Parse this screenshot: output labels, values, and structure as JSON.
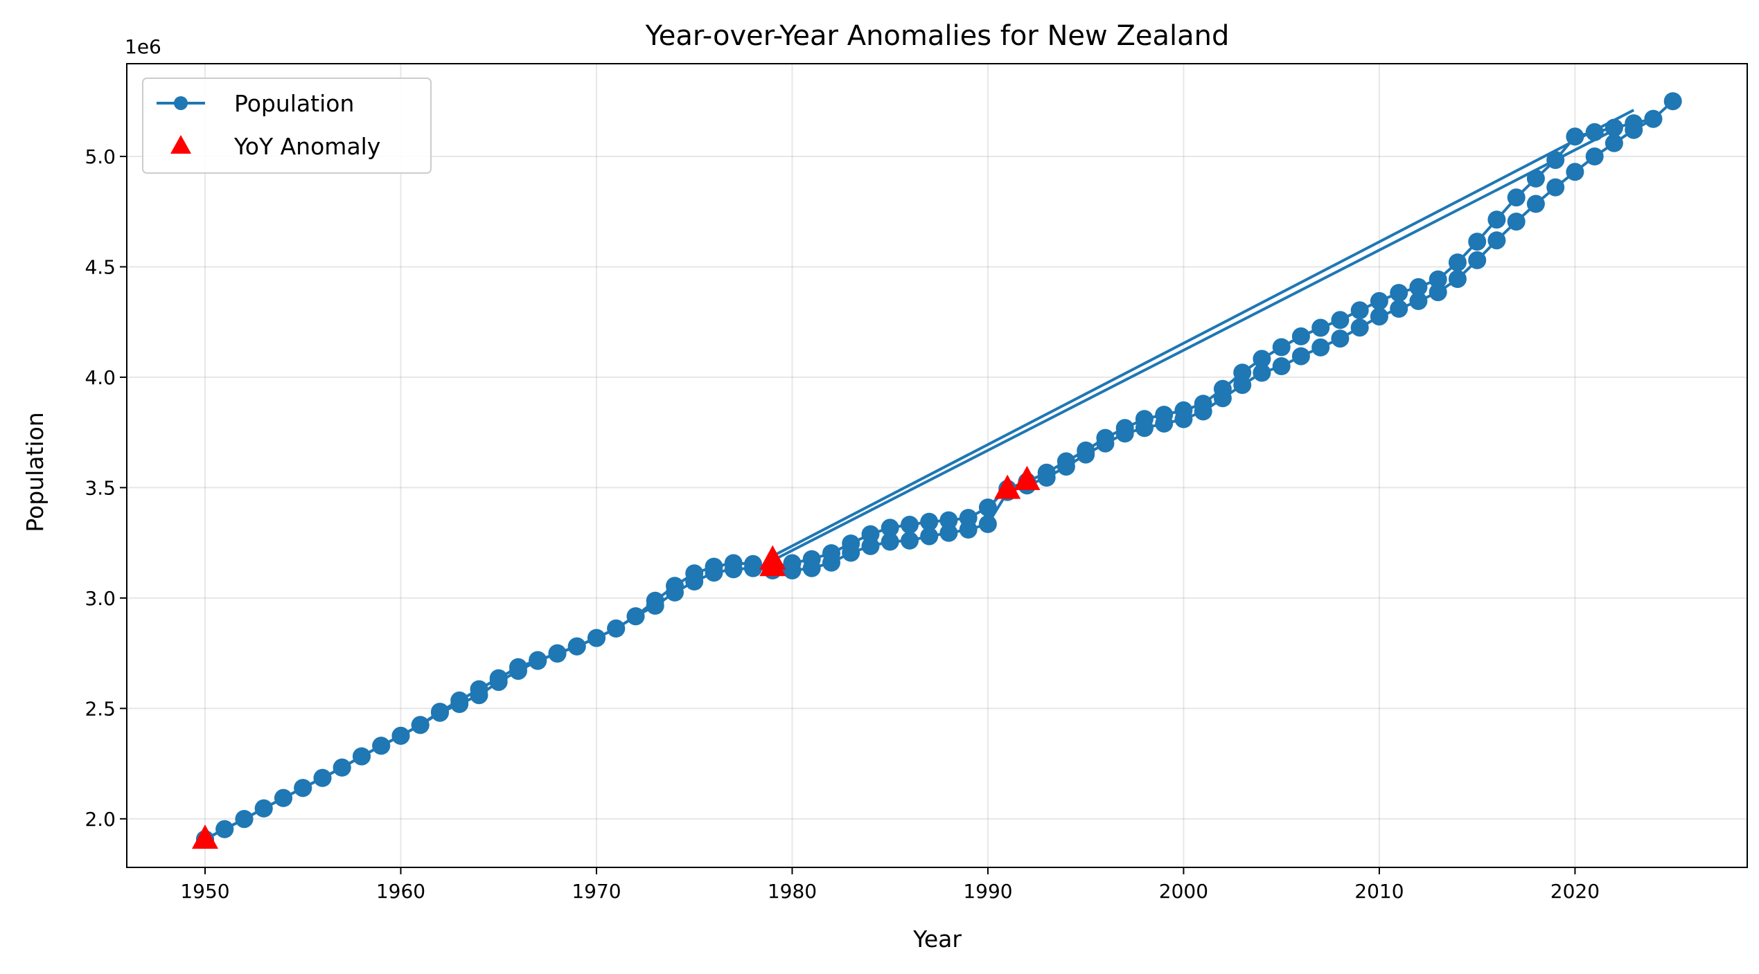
{
  "chart_data": {
    "type": "line",
    "title": "Year-over-Year Anomalies for New Zealand",
    "xlabel": "Year",
    "ylabel": "Population",
    "y_offset_label": "1e6",
    "xlim": [
      1946,
      2028.8
    ],
    "ylim": [
      1.78,
      5.42
    ],
    "x_ticks": [
      1950,
      1960,
      1970,
      1980,
      1990,
      2000,
      2010,
      2020
    ],
    "x_tick_labels": [
      "1950",
      "1960",
      "1970",
      "1980",
      "1990",
      "2000",
      "2010",
      "2020"
    ],
    "y_ticks": [
      2.0,
      2.5,
      3.0,
      3.5,
      4.0,
      4.5,
      5.0
    ],
    "y_tick_labels": [
      "2.0",
      "2.5",
      "3.0",
      "3.5",
      "4.0",
      "4.5",
      "5.0"
    ],
    "grid": true,
    "legend_position": "top-left",
    "colors": {
      "population": "#1f77b4",
      "anomaly": "#ff0000"
    },
    "series": [
      {
        "name": "Population",
        "segments": [
          {
            "x": [
              1950,
              1951,
              1952,
              1953,
              1954,
              1955,
              1956,
              1957,
              1958,
              1959,
              1960,
              1961,
              1962,
              1963,
              1964,
              1965,
              1966,
              1967,
              1968,
              1969,
              1970,
              1971,
              1972,
              1973,
              1974,
              1975,
              1976,
              1977,
              1978,
              1979,
              1980,
              1981,
              1982,
              1983,
              1984,
              1985,
              1986,
              1987,
              1988,
              1989,
              1990,
              1991,
              1992,
              1993,
              1994,
              1995,
              1996,
              1997,
              1998,
              1999,
              2000,
              2001,
              2002,
              2003,
              2004,
              2005,
              2006,
              2007,
              2008,
              2009,
              2010,
              2011,
              2012,
              2013,
              2014,
              2015,
              2016,
              2017,
              2018,
              2019,
              2020,
              2021,
              2022,
              2023,
              2024,
              2025
            ],
            "y": [
              1.908,
              1.953,
              1.999,
              2.047,
              2.094,
              2.14,
              2.185,
              2.232,
              2.283,
              2.331,
              2.376,
              2.425,
              2.485,
              2.536,
              2.587,
              2.637,
              2.687,
              2.719,
              2.748,
              2.781,
              2.819,
              2.862,
              2.917,
              2.988,
              3.055,
              3.112,
              3.142,
              3.158,
              3.154,
              3.14,
              3.158,
              3.176,
              3.203,
              3.247,
              3.289,
              3.318,
              3.332,
              3.345,
              3.352,
              3.363,
              3.41,
              3.495,
              3.527,
              3.568,
              3.619,
              3.668,
              3.725,
              3.77,
              3.811,
              3.83,
              3.85,
              3.88,
              3.947,
              4.021,
              4.083,
              4.136,
              4.185,
              4.224,
              4.259,
              4.303,
              4.345,
              4.382,
              4.408,
              4.443,
              4.52,
              4.614,
              4.714,
              4.814,
              4.9,
              4.984,
              5.09,
              5.11,
              5.13,
              5.15,
              5.17,
              5.25
            ]
          },
          {
            "x": [
              1950,
              1951,
              1952,
              1953,
              1954,
              1955,
              1956,
              1957,
              1958,
              1959,
              1960,
              1961,
              1962,
              1963,
              1964,
              1965,
              1966,
              1967,
              1968,
              1969,
              1970,
              1971,
              1972,
              1973,
              1974,
              1975,
              1976,
              1977,
              1978,
              1979,
              1980,
              1981,
              1982,
              1983,
              1984,
              1985,
              1986,
              1987,
              1988,
              1989,
              1990,
              1991,
              1992,
              1993,
              1994,
              1995,
              1996,
              1997,
              1998,
              1999,
              2000,
              2001,
              2002,
              2003,
              2004,
              2005,
              2006,
              2007,
              2008,
              2009,
              2010,
              2011,
              2012,
              2013,
              2014,
              2015,
              2016,
              2017,
              2018,
              2019,
              2020,
              2021,
              2022,
              2023,
              2024
            ],
            "y": [
              1.908,
              1.953,
              1.999,
              2.047,
              2.094,
              2.14,
              2.185,
              2.232,
              2.283,
              2.331,
              2.376,
              2.425,
              2.48,
              2.52,
              2.56,
              2.62,
              2.67,
              2.715,
              2.75,
              2.781,
              2.819,
              2.862,
              2.917,
              2.965,
              3.025,
              3.075,
              3.115,
              3.13,
              3.135,
              3.125,
              3.125,
              3.135,
              3.16,
              3.205,
              3.235,
              3.255,
              3.26,
              3.28,
              3.295,
              3.31,
              3.335,
              3.48,
              3.51,
              3.545,
              3.595,
              3.65,
              3.7,
              3.745,
              3.77,
              3.79,
              3.81,
              3.845,
              3.905,
              3.965,
              4.02,
              4.05,
              4.095,
              4.135,
              4.175,
              4.225,
              4.275,
              4.31,
              4.345,
              4.385,
              4.445,
              4.53,
              4.62,
              4.705,
              4.785,
              4.86,
              4.93,
              5.0,
              5.06,
              5.12,
              5.17
            ]
          }
        ],
        "connectors": [
          {
            "x": [
              1979,
              2022
            ],
            "y": [
              3.17,
              5.12
            ]
          },
          {
            "x": [
              1979,
              2023
            ],
            "y": [
              3.19,
              5.21
            ]
          }
        ]
      },
      {
        "name": "YoY Anomaly",
        "marker": "triangle",
        "x": [
          1950,
          1979,
          1979,
          1991,
          1992
        ],
        "y": [
          1.905,
          3.14,
          3.17,
          3.49,
          3.53
        ]
      }
    ]
  }
}
